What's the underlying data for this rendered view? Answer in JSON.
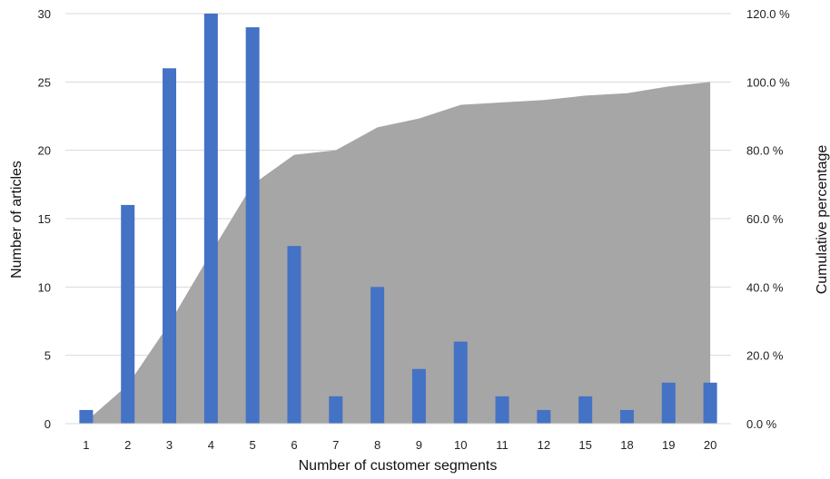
{
  "chart_data": {
    "type": "bar",
    "categories": [
      "1",
      "2",
      "3",
      "4",
      "5",
      "6",
      "7",
      "8",
      "9",
      "10",
      "11",
      "12",
      "15",
      "18",
      "19",
      "20"
    ],
    "series": [
      {
        "type": "bar",
        "axis": "left",
        "color": "#4472c4",
        "values": [
          1,
          16,
          26,
          30,
          29,
          13,
          2,
          10,
          4,
          6,
          2,
          1,
          2,
          1,
          3,
          3
        ]
      },
      {
        "type": "area",
        "axis": "right",
        "color": "#a6a6a6",
        "values": [
          0.7,
          11.3,
          29.3,
          50.0,
          70.0,
          78.7,
          80.0,
          86.7,
          89.3,
          93.3,
          94.0,
          94.7,
          96.0,
          96.7,
          98.7,
          100.0
        ]
      }
    ],
    "xlabel": "Number of customer segments",
    "ylabel": "Number of articles",
    "y2label": "Cumulative percentage",
    "ylim": [
      0,
      30
    ],
    "y2lim": [
      0,
      120
    ],
    "yticks": [
      "0",
      "5",
      "10",
      "15",
      "20",
      "25",
      "30"
    ],
    "y2ticks": [
      "0.0 %",
      "20.0 %",
      "40.0 %",
      "60.0 %",
      "80.0 %",
      "100.0 %",
      "120.0 %"
    ],
    "grid": true
  }
}
